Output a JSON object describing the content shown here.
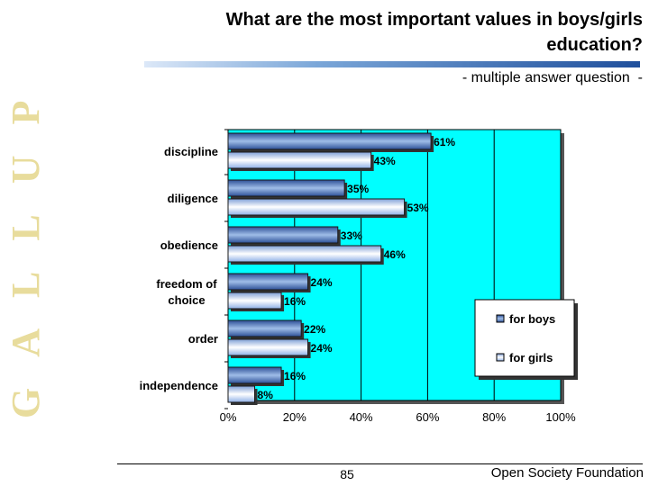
{
  "slide": {
    "brand": "GALLUP",
    "title": "What are the most important values in boys/girls\neducation?",
    "subtitle": "- multiple answer question  -",
    "page_number": "85",
    "footer": "Open Society Foundation"
  },
  "colors": {
    "plot_background": "#00ffff",
    "boys_bar": "#5a84c8",
    "girls_bar": "#d6e6ff",
    "brand_text": "#e8dc9c",
    "title_rule": "#1f4f9c"
  },
  "chart_data": {
    "type": "bar",
    "orientation": "horizontal",
    "categories": [
      "discipline",
      "diligence",
      "obedience",
      "freedom of\nchoice",
      "order",
      "independence"
    ],
    "series": [
      {
        "name": "for boys",
        "values": [
          61,
          35,
          33,
          24,
          22,
          16
        ]
      },
      {
        "name": "for girls",
        "values": [
          43,
          53,
          46,
          16,
          24,
          8
        ]
      }
    ],
    "value_suffix": "%",
    "xlim": [
      0,
      100
    ],
    "x_ticks": [
      0,
      20,
      40,
      60,
      80,
      100
    ],
    "x_tick_labels": [
      "0%",
      "20%",
      "40%",
      "60%",
      "80%",
      "100%"
    ],
    "legend_position": "right",
    "grid": "vertical"
  }
}
